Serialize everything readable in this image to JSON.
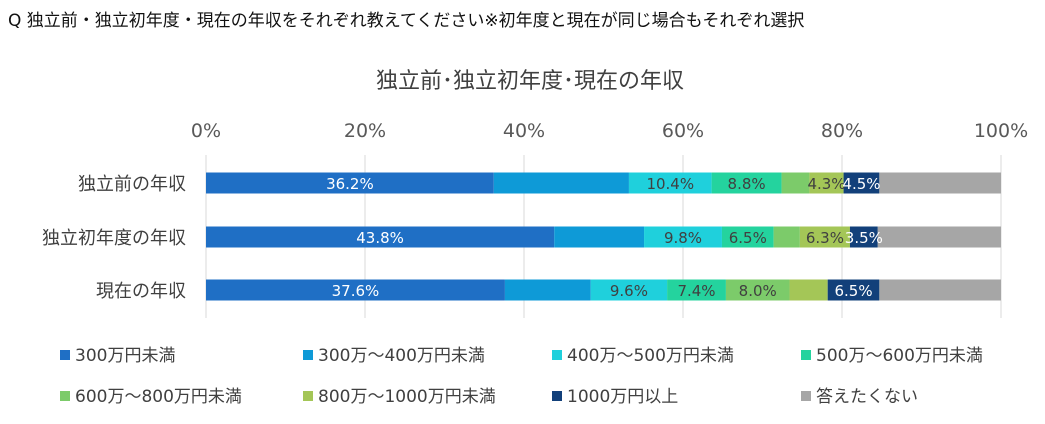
{
  "question": "Q  独立前・独立初年度・現在の年収をそれぞれ教えてください※初年度と現在が同じ場合もそれぞれ選択",
  "chart_data": {
    "type": "bar",
    "orientation": "horizontal-stacked-100",
    "title": "独立前･独立初年度･現在の年収",
    "xlim": [
      0,
      100
    ],
    "x_ticks": [
      "0%",
      "20%",
      "40%",
      "60%",
      "80%",
      "100%"
    ],
    "grid": true,
    "legend_position": "bottom",
    "categories": [
      "独立前の年収",
      "独立初年度の年収",
      "現在の年収"
    ],
    "series": [
      {
        "name": "300万円未満",
        "color": "#1f6fc5",
        "values": [
          36.2,
          43.8,
          37.6
        ],
        "labels": [
          "36.2%",
          "43.8%",
          "37.6%"
        ]
      },
      {
        "name": "300万～400万円未満",
        "color": "#0e9ad7",
        "values": [
          17.0,
          11.3,
          10.8
        ],
        "labels": [
          "",
          "",
          ""
        ]
      },
      {
        "name": "400万～500万円未満",
        "color": "#1fd0dc",
        "values": [
          10.4,
          9.8,
          9.6
        ],
        "labels": [
          "10.4%",
          "9.8%",
          "9.6%"
        ]
      },
      {
        "name": "500万～600万円未満",
        "color": "#24d39e",
        "values": [
          8.8,
          6.5,
          7.4
        ],
        "labels": [
          "8.8%",
          "6.5%",
          "7.4%"
        ]
      },
      {
        "name": "600万～800万円未満",
        "color": "#7ccb6a",
        "values": [
          3.5,
          3.3,
          8.0
        ],
        "labels": [
          "",
          "",
          "8.0%"
        ]
      },
      {
        "name": "800万～1000万円未満",
        "color": "#a4c657",
        "values": [
          4.3,
          6.3,
          4.8
        ],
        "labels": [
          "4.3%",
          "6.3%",
          ""
        ]
      },
      {
        "name": "1000万円以上",
        "color": "#12407a",
        "values": [
          4.5,
          3.5,
          6.5
        ],
        "labels": [
          "4.5%",
          "3.5%",
          "6.5%"
        ]
      },
      {
        "name": "答えたくない",
        "color": "#a6a6a6",
        "values": [
          15.3,
          15.5,
          15.3
        ],
        "labels": [
          "",
          "",
          ""
        ]
      }
    ]
  }
}
